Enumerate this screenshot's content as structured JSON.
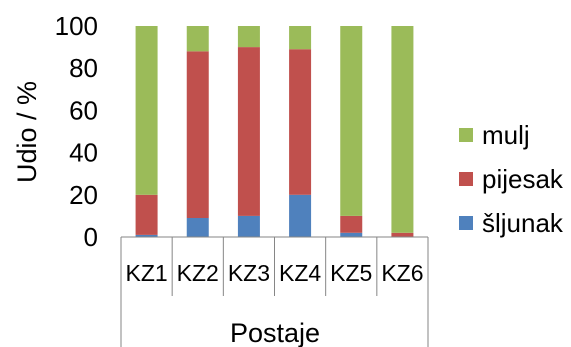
{
  "chart_data": {
    "type": "bar",
    "stacked": true,
    "title": "",
    "xlabel": "Postaje",
    "ylabel": "Udio / %",
    "ylim": [
      0,
      100
    ],
    "yticks": [
      0,
      20,
      40,
      60,
      80,
      100
    ],
    "grid": false,
    "legend_position": "right",
    "categories": [
      "KZ1",
      "KZ2",
      "KZ3",
      "KZ4",
      "KZ5",
      "KZ6"
    ],
    "series": [
      {
        "name": "šljunak",
        "color": "#4F81BD",
        "values": [
          1,
          9,
          10,
          20,
          2,
          0
        ]
      },
      {
        "name": "pijesak",
        "color": "#C0504D",
        "values": [
          19,
          79,
          80,
          69,
          8,
          2
        ]
      },
      {
        "name": "mulj",
        "color": "#9BBB59",
        "values": [
          80,
          12,
          10,
          11,
          90,
          98
        ]
      }
    ],
    "legend_order": [
      "mulj",
      "pijesak",
      "šljunak"
    ]
  }
}
